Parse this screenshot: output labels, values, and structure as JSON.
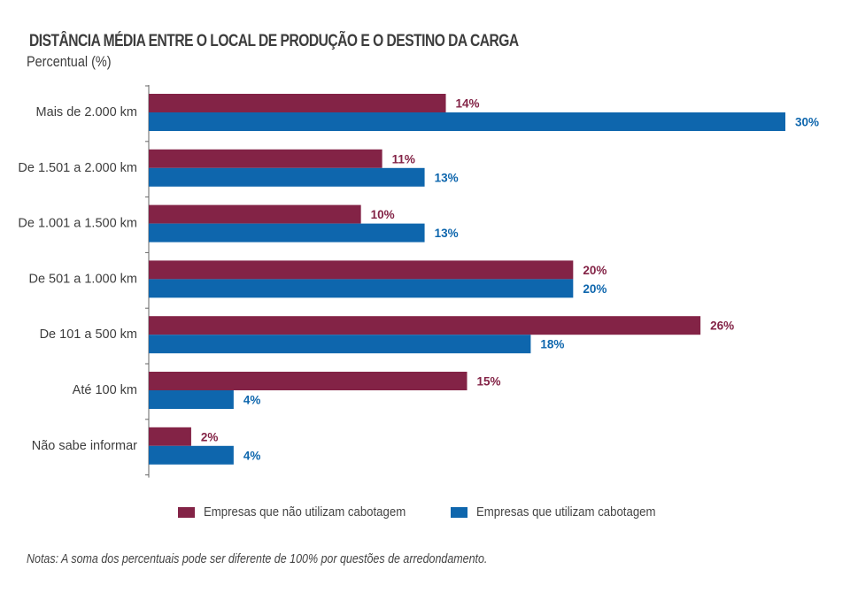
{
  "chart_data": {
    "type": "bar",
    "orientation": "horizontal",
    "title": "DISTÂNCIA MÉDIA ENTRE O LOCAL DE PRODUÇÃO E O DESTINO DA CARGA",
    "subtitle": "Percentual (%)",
    "xlabel": "",
    "ylabel": "",
    "xlim": [
      0,
      30
    ],
    "grid": false,
    "legend_position": "bottom",
    "value_suffix": "%",
    "categories": [
      "Mais de 2.000 km",
      "De 1.501 a 2.000 km",
      "De 1.001 a 1.500 km",
      "De 501 a 1.000 km",
      "De 101 a 500 km",
      "Até 100 km",
      "Não sabe informar"
    ],
    "series": [
      {
        "name": "Empresas que não utilizam cabotagem",
        "color": "#832346",
        "values": [
          14,
          11,
          10,
          20,
          26,
          15,
          2
        ]
      },
      {
        "name": "Empresas que utilizam cabotagem",
        "color": "#0e66ad",
        "values": [
          30,
          13,
          13,
          20,
          18,
          4,
          4
        ]
      }
    ],
    "note": "Notas: A soma dos percentuais pode ser diferente de 100% por questões de arredondamento."
  }
}
